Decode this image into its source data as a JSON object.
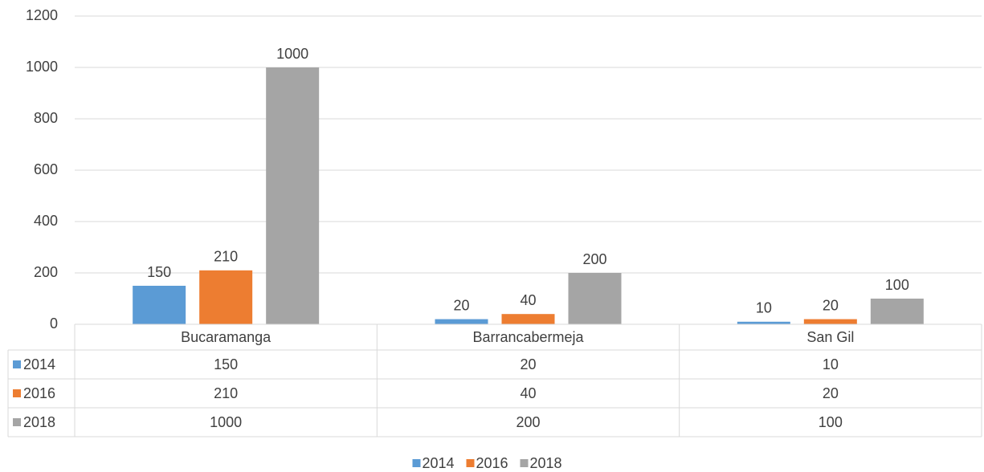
{
  "chart_data": {
    "type": "bar",
    "categories": [
      "Bucaramanga",
      "Barrancabermeja",
      "San Gil"
    ],
    "series": [
      {
        "name": "2014",
        "color": "#5b9bd5",
        "values": [
          150,
          20,
          10
        ]
      },
      {
        "name": "2016",
        "color": "#ed7d31",
        "values": [
          210,
          40,
          20
        ]
      },
      {
        "name": "2018",
        "color": "#a5a5a5",
        "values": [
          1000,
          200,
          100
        ]
      }
    ],
    "ylim": [
      0,
      1200
    ],
    "yticks": [
      0,
      200,
      400,
      600,
      800,
      1000,
      1200
    ],
    "grid": true,
    "data_table": true,
    "data_labels": true,
    "legend": "bottom"
  }
}
